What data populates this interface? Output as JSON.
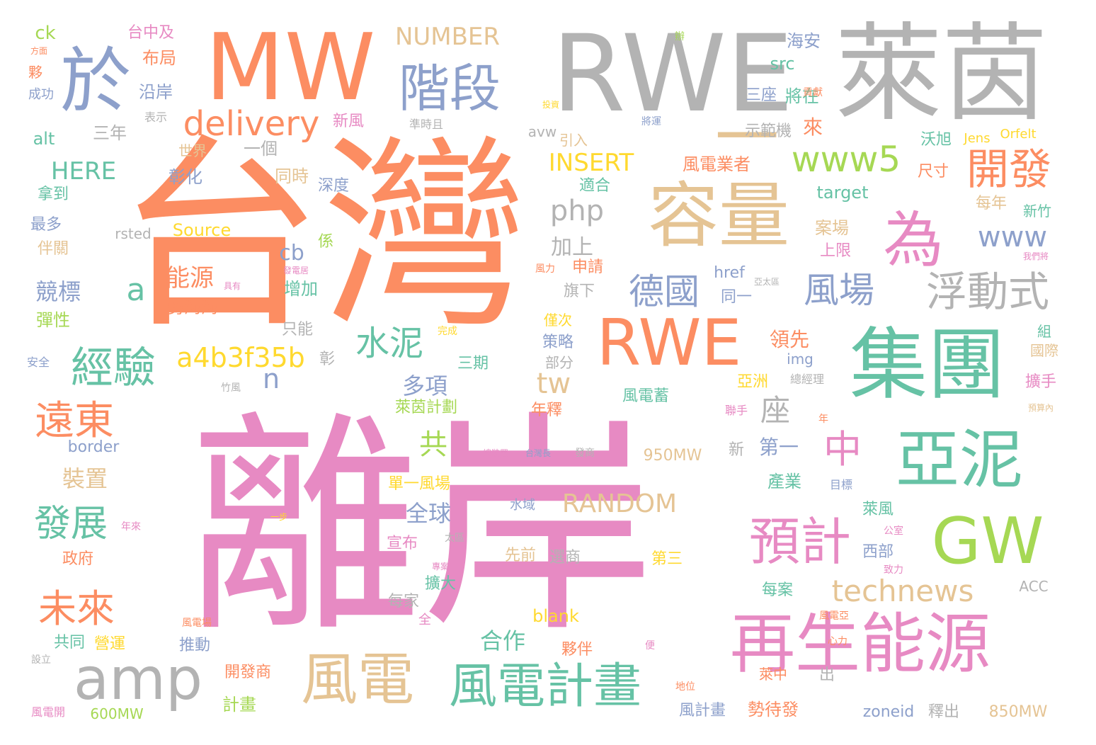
{
  "palette": {
    "orange": "#fc8d62",
    "pink": "#e78ac3",
    "green": "#66c2a5",
    "blue": "#8da0cb",
    "lime": "#a6d854",
    "tan": "#e5c494",
    "yellow": "#ffd92f",
    "gray": "#b3b3b3"
  },
  "words": [
    {
      "text": "台灣",
      "color": "orange"
    },
    {
      "text": "離岸",
      "color": "pink"
    },
    {
      "text": "RWE",
      "color": "gray"
    },
    {
      "text": "萊茵",
      "color": "gray"
    },
    {
      "text": "MW",
      "color": "orange"
    },
    {
      "text": "於",
      "color": "blue"
    },
    {
      "text": "階段",
      "color": "blue"
    },
    {
      "text": "容量",
      "color": "tan"
    },
    {
      "text": "一",
      "color": "tan"
    },
    {
      "text": "集團",
      "color": "green"
    },
    {
      "text": "亞泥",
      "color": "green"
    },
    {
      "text": "GW",
      "color": "lime"
    },
    {
      "text": "再生能源",
      "color": "pink"
    },
    {
      "text": "RWE",
      "color": "orange"
    },
    {
      "text": "為",
      "color": "pink"
    },
    {
      "text": "開發",
      "color": "orange"
    },
    {
      "text": "預計",
      "color": "pink"
    },
    {
      "text": "風電",
      "color": "tan"
    },
    {
      "text": "風電計畫",
      "color": "green"
    },
    {
      "text": "amp",
      "color": "gray"
    },
    {
      "text": "delivery",
      "color": "orange"
    },
    {
      "text": "www5",
      "color": "lime"
    },
    {
      "text": "浮動式",
      "color": "gray"
    },
    {
      "text": "風場",
      "color": "blue"
    },
    {
      "text": "德國",
      "color": "blue"
    },
    {
      "text": "經驗",
      "color": "green"
    },
    {
      "text": "遠東",
      "color": "orange"
    },
    {
      "text": "未來",
      "color": "orange"
    },
    {
      "text": "發展",
      "color": "green"
    },
    {
      "text": "technews",
      "color": "tan"
    },
    {
      "text": "水泥",
      "color": "green"
    },
    {
      "text": "中",
      "color": "pink"
    },
    {
      "text": "NUMBER",
      "color": "tan"
    },
    {
      "text": "www",
      "color": "blue"
    },
    {
      "text": "php",
      "color": "gray"
    },
    {
      "text": "a4b3f35b",
      "color": "yellow"
    },
    {
      "text": "HERE",
      "color": "green"
    },
    {
      "text": "INSERT",
      "color": "yellow"
    },
    {
      "text": "RANDOM",
      "color": "tan"
    },
    {
      "text": "a",
      "color": "green"
    },
    {
      "text": "能源",
      "color": "orange"
    },
    {
      "text": "座",
      "color": "gray"
    },
    {
      "text": "共",
      "color": "lime"
    },
    {
      "text": "tw",
      "color": "tan"
    },
    {
      "text": "n",
      "color": "blue"
    },
    {
      "text": "多項",
      "color": "blue"
    },
    {
      "text": "全球",
      "color": "blue"
    },
    {
      "text": "合作",
      "color": "green"
    },
    {
      "text": "競標",
      "color": "blue"
    },
    {
      "text": "裝置",
      "color": "tan"
    },
    {
      "text": "加上",
      "color": "gray"
    },
    {
      "text": "cb",
      "color": "blue"
    },
    {
      "text": "第一",
      "color": "blue"
    },
    {
      "text": "領先",
      "color": "orange"
    },
    {
      "text": "亞洲",
      "color": "yellow"
    },
    {
      "text": "布局",
      "color": "orange"
    },
    {
      "text": "沿岸",
      "color": "blue"
    },
    {
      "text": "台中及",
      "color": "pink"
    },
    {
      "text": "海安",
      "color": "blue"
    },
    {
      "text": "src",
      "color": "green"
    },
    {
      "text": "三座",
      "color": "blue"
    },
    {
      "text": "將在",
      "color": "green"
    },
    {
      "text": "ck",
      "color": "lime"
    },
    {
      "text": "alt",
      "color": "green"
    },
    {
      "text": "三年",
      "color": "gray"
    },
    {
      "text": "世界",
      "color": "tan"
    },
    {
      "text": "彰化",
      "color": "blue"
    },
    {
      "text": "一個",
      "color": "gray"
    },
    {
      "text": "新風",
      "color": "pink"
    },
    {
      "text": "avw",
      "color": "gray"
    },
    {
      "text": "引入",
      "color": "tan"
    },
    {
      "text": "示範機",
      "color": "gray"
    },
    {
      "text": "來",
      "color": "orange"
    },
    {
      "text": "沃旭",
      "color": "green"
    },
    {
      "text": "Jens",
      "color": "yellow"
    },
    {
      "text": "Orfelt",
      "color": "yellow"
    },
    {
      "text": "風電業者",
      "color": "orange"
    },
    {
      "text": "尺寸",
      "color": "orange"
    },
    {
      "text": "target",
      "color": "green"
    },
    {
      "text": "適合",
      "color": "green"
    },
    {
      "text": "同時",
      "color": "tan"
    },
    {
      "text": "深度",
      "color": "blue"
    },
    {
      "text": "拿到",
      "color": "green"
    },
    {
      "text": "最多",
      "color": "blue"
    },
    {
      "text": "rsted",
      "color": "gray"
    },
    {
      "text": "Source",
      "color": "yellow"
    },
    {
      "text": "伴關",
      "color": "tan"
    },
    {
      "text": "係",
      "color": "lime"
    },
    {
      "text": "每年",
      "color": "tan"
    },
    {
      "text": "新竹",
      "color": "green"
    },
    {
      "text": "案場",
      "color": "tan"
    },
    {
      "text": "上限",
      "color": "pink"
    },
    {
      "text": "申請",
      "color": "orange"
    },
    {
      "text": "旗下",
      "color": "gray"
    },
    {
      "text": "href",
      "color": "blue"
    },
    {
      "text": "同一",
      "color": "blue"
    },
    {
      "text": "增加",
      "color": "green"
    },
    {
      "text": "勢洶洶",
      "color": "orange"
    },
    {
      "text": "只能",
      "color": "gray"
    },
    {
      "text": "彈性",
      "color": "lime"
    },
    {
      "text": "僅次",
      "color": "yellow"
    },
    {
      "text": "策略",
      "color": "blue"
    },
    {
      "text": "部分",
      "color": "gray"
    },
    {
      "text": "三期",
      "color": "green"
    },
    {
      "text": "彰",
      "color": "gray"
    },
    {
      "text": "img",
      "color": "blue"
    },
    {
      "text": "擴手",
      "color": "pink"
    },
    {
      "text": "國際",
      "color": "tan"
    },
    {
      "text": "組",
      "color": "green"
    },
    {
      "text": "萊茵計劃",
      "color": "lime"
    },
    {
      "text": "年釋",
      "color": "orange"
    },
    {
      "text": "風電蓄",
      "color": "green"
    },
    {
      "text": "border",
      "color": "blue"
    },
    {
      "text": "950MW",
      "color": "tan"
    },
    {
      "text": "新",
      "color": "gray"
    },
    {
      "text": "產業",
      "color": "green"
    },
    {
      "text": "單一風場",
      "color": "yellow"
    },
    {
      "text": "水域",
      "color": "blue"
    },
    {
      "text": "萊風",
      "color": "green"
    },
    {
      "text": "宣布",
      "color": "pink"
    },
    {
      "text": "先前",
      "color": "tan"
    },
    {
      "text": "選商",
      "color": "gray"
    },
    {
      "text": "第三",
      "color": "yellow"
    },
    {
      "text": "政府",
      "color": "orange"
    },
    {
      "text": "西部",
      "color": "blue"
    },
    {
      "text": "擴大",
      "color": "green"
    },
    {
      "text": "每家",
      "color": "gray"
    },
    {
      "text": "每案",
      "color": "green"
    },
    {
      "text": "ACC",
      "color": "gray"
    },
    {
      "text": "blank",
      "color": "yellow"
    },
    {
      "text": "夥伴",
      "color": "orange"
    },
    {
      "text": "推動",
      "color": "blue"
    },
    {
      "text": "共同",
      "color": "green"
    },
    {
      "text": "營運",
      "color": "yellow"
    },
    {
      "text": "開發商",
      "color": "orange"
    },
    {
      "text": "計畫",
      "color": "lime"
    },
    {
      "text": "風計畫",
      "color": "blue"
    },
    {
      "text": "勢待發",
      "color": "orange"
    },
    {
      "text": "zoneid",
      "color": "blue"
    },
    {
      "text": "釋出",
      "color": "gray"
    },
    {
      "text": "850MW",
      "color": "tan"
    },
    {
      "text": "600MW",
      "color": "lime"
    },
    {
      "text": "萊中",
      "color": "orange"
    },
    {
      "text": "出",
      "color": "gray"
    },
    {
      "text": "風電開",
      "color": "pink"
    },
    {
      "text": "風電場",
      "color": "orange"
    },
    {
      "text": "全",
      "color": "pink"
    },
    {
      "text": "成功",
      "color": "blue"
    },
    {
      "text": "夥",
      "color": "orange"
    },
    {
      "text": "方面",
      "color": "orange"
    },
    {
      "text": "表示",
      "color": "gray"
    },
    {
      "text": "投資",
      "color": "yellow"
    },
    {
      "text": "將運",
      "color": "blue"
    },
    {
      "text": "貢獻",
      "color": "orange"
    },
    {
      "text": "準時且",
      "color": "gray"
    },
    {
      "text": "辦",
      "color": "lime"
    },
    {
      "text": "發電居",
      "color": "pink"
    },
    {
      "text": "完成",
      "color": "yellow"
    },
    {
      "text": "竹風",
      "color": "gray"
    },
    {
      "text": "安全",
      "color": "blue"
    },
    {
      "text": "總經理",
      "color": "gray"
    },
    {
      "text": "聯手",
      "color": "pink"
    },
    {
      "text": "年",
      "color": "orange"
    },
    {
      "text": "目標",
      "color": "blue"
    },
    {
      "text": "公室",
      "color": "pink"
    },
    {
      "text": "致力",
      "color": "pink"
    },
    {
      "text": "心力",
      "color": "orange"
    },
    {
      "text": "風電亞",
      "color": "orange"
    },
    {
      "text": "便",
      "color": "pink"
    },
    {
      "text": "地位",
      "color": "orange"
    },
    {
      "text": "設立",
      "color": "gray"
    },
    {
      "text": "發商",
      "color": "gray"
    },
    {
      "text": "台灣長",
      "color": "blue"
    },
    {
      "text": "總裝置",
      "color": "pink"
    },
    {
      "text": "專案",
      "color": "pink"
    },
    {
      "text": "太區",
      "color": "gray"
    },
    {
      "text": "一步",
      "color": "yellow"
    },
    {
      "text": "年來",
      "color": "pink"
    },
    {
      "text": "預算內",
      "color": "tan"
    },
    {
      "text": "我們將",
      "color": "pink"
    },
    {
      "text": "風力",
      "color": "orange"
    },
    {
      "text": "具有",
      "color": "pink"
    },
    {
      "text": "亞太區",
      "color": "gray"
    }
  ]
}
